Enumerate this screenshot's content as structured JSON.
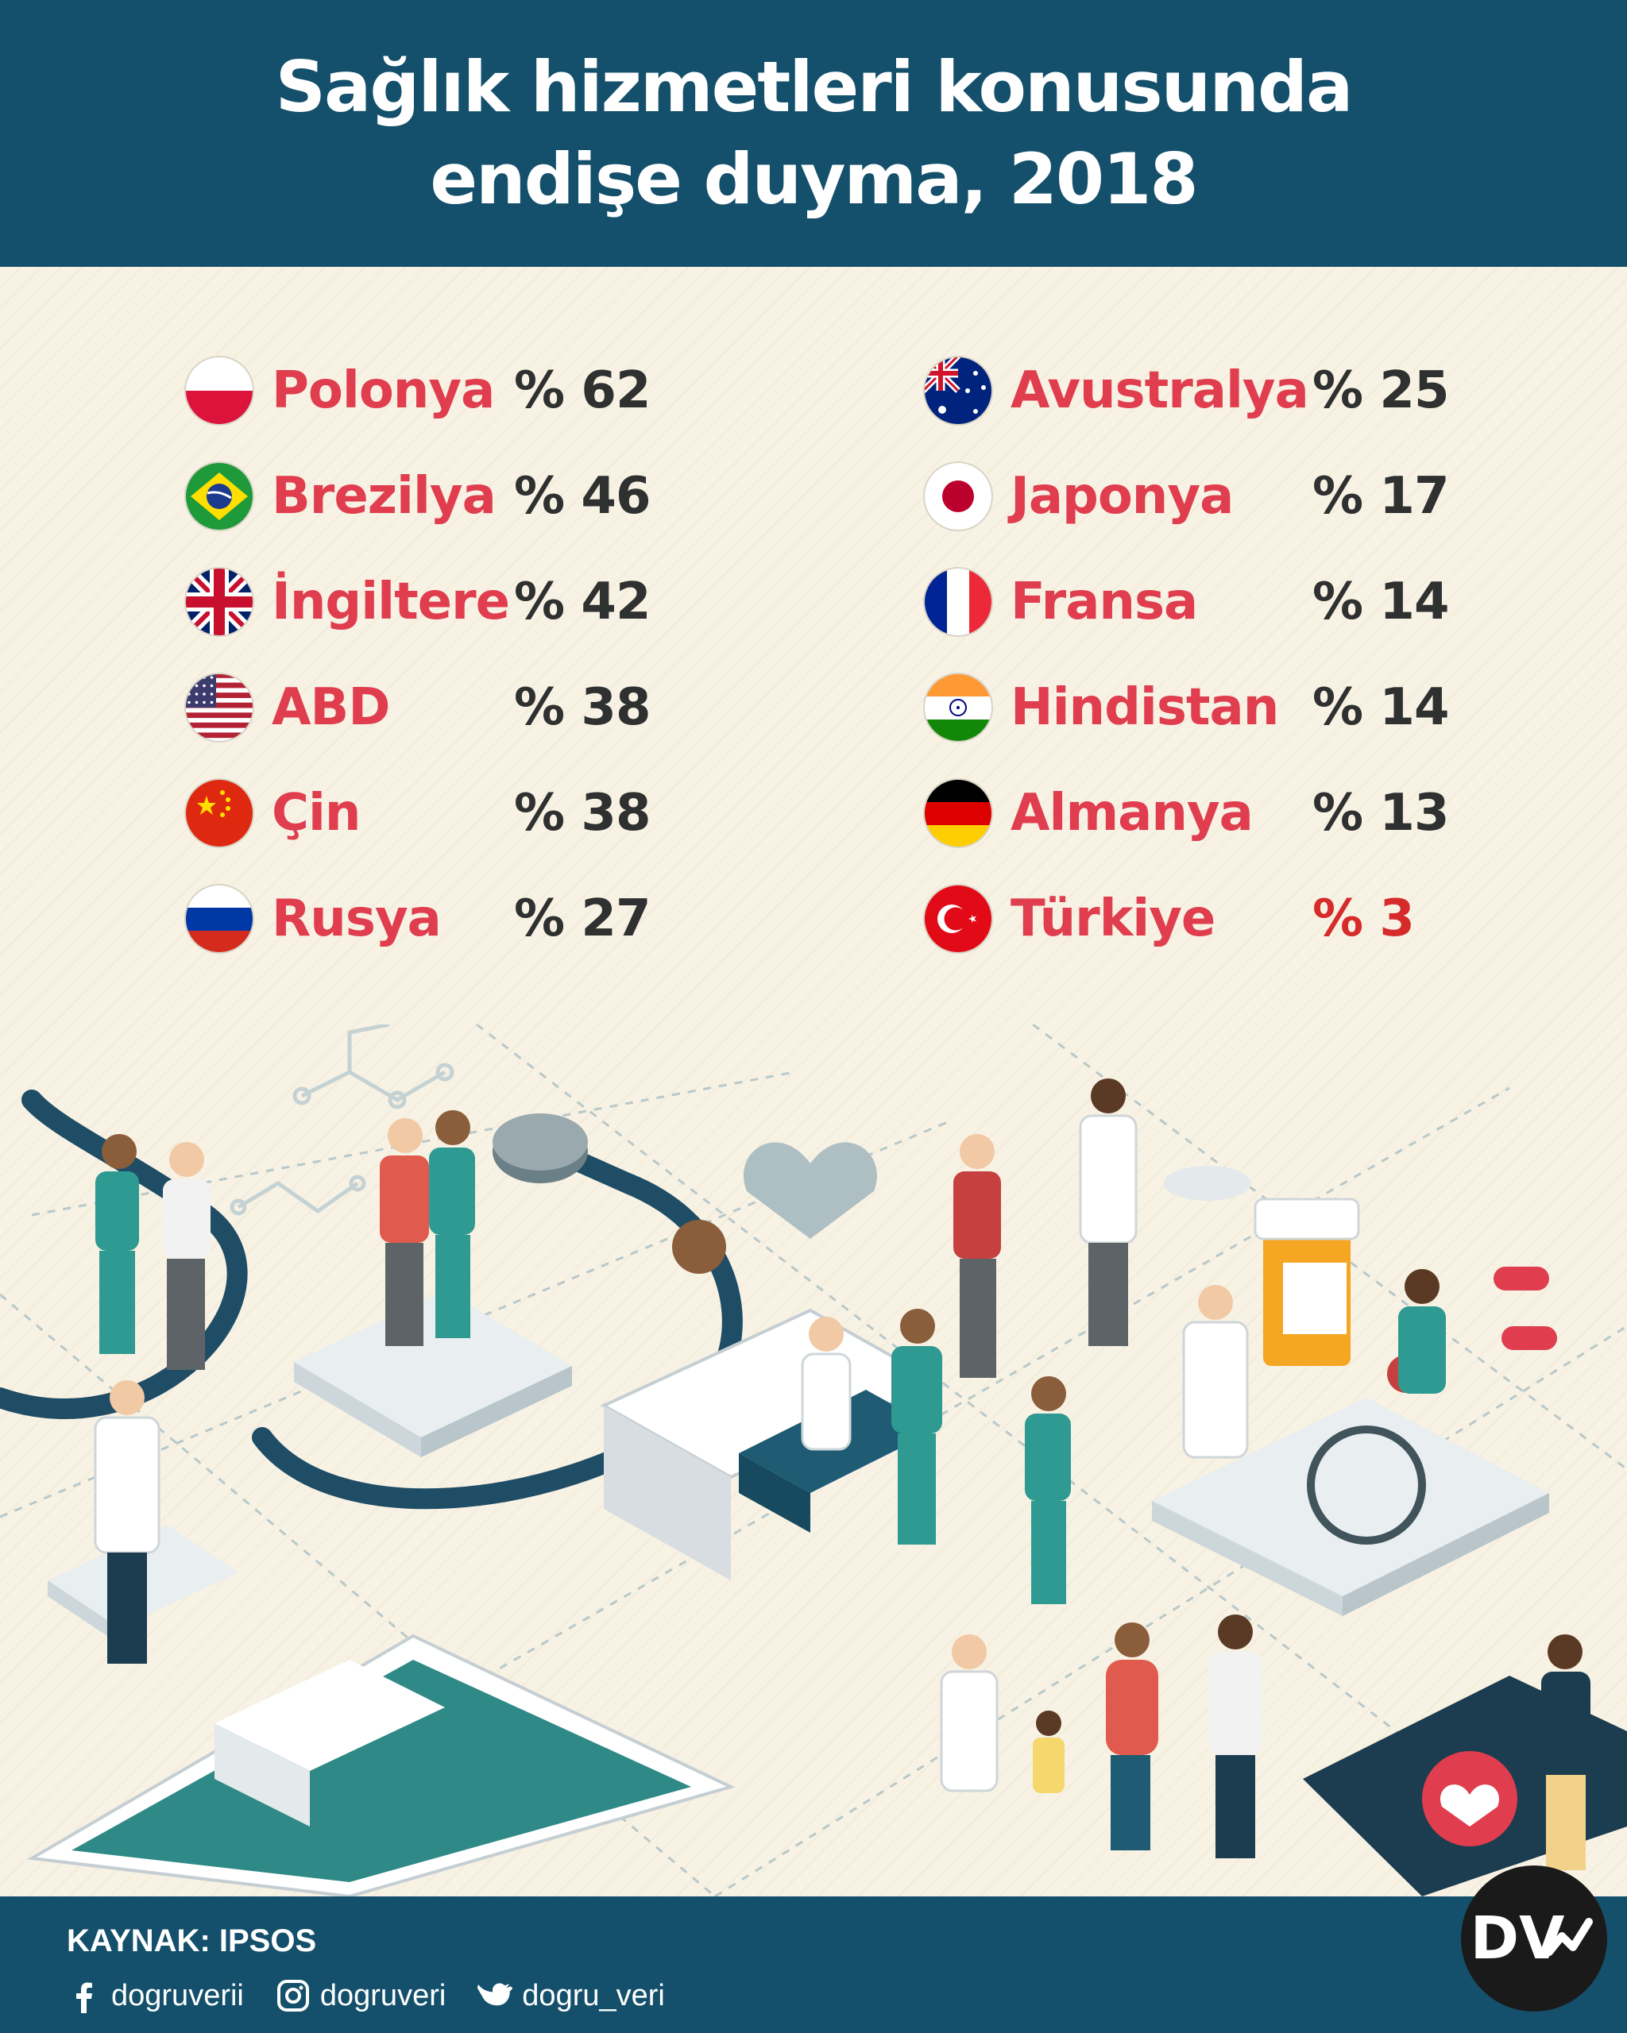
{
  "header": {
    "title_line1": "Sağlık hizmetleri konusunda",
    "title_line2": "endişe duyma, 2018"
  },
  "chart_data": {
    "type": "table",
    "unit": "%",
    "title": "Sağlık hizmetleri konusunda endişe duyma, 2018",
    "categories": [
      "Polonya",
      "Brezilya",
      "İngiltere",
      "ABD",
      "Çin",
      "Rusya",
      "Avustralya",
      "Japonya",
      "Fransa",
      "Hindistan",
      "Almanya",
      "Türkiye"
    ],
    "values": [
      62,
      46,
      42,
      38,
      38,
      27,
      25,
      17,
      14,
      14,
      13,
      3
    ],
    "rows": [
      {
        "country": "Polonya",
        "value": 62,
        "label": "% 62",
        "flag": "poland-flag-icon"
      },
      {
        "country": "Brezilya",
        "value": 46,
        "label": "% 46",
        "flag": "brazil-flag-icon"
      },
      {
        "country": "İngiltere",
        "value": 42,
        "label": "% 42",
        "flag": "uk-flag-icon"
      },
      {
        "country": "ABD",
        "value": 38,
        "label": "% 38",
        "flag": "usa-flag-icon"
      },
      {
        "country": "Çin",
        "value": 38,
        "label": "% 38",
        "flag": "china-flag-icon"
      },
      {
        "country": "Rusya",
        "value": 27,
        "label": "% 27",
        "flag": "russia-flag-icon"
      },
      {
        "country": "Avustralya",
        "value": 25,
        "label": "% 25",
        "flag": "australia-flag-icon"
      },
      {
        "country": "Japonya",
        "value": 17,
        "label": "% 17",
        "flag": "japan-flag-icon"
      },
      {
        "country": "Fransa",
        "value": 14,
        "label": "% 14",
        "flag": "france-flag-icon"
      },
      {
        "country": "Hindistan",
        "value": 14,
        "label": "% 14",
        "flag": "india-flag-icon"
      },
      {
        "country": "Almanya",
        "value": 13,
        "label": "% 13",
        "flag": "germany-flag-icon"
      },
      {
        "country": "Türkiye",
        "value": 3,
        "label": "% 3",
        "flag": "turkey-flag-icon",
        "highlight": true
      }
    ]
  },
  "footer": {
    "source": "KAYNAK: IPSOS",
    "facebook": "dogruverii",
    "instagram": "dogruveri",
    "twitter": "dogru_veri",
    "logo_text": "DV"
  },
  "colors": {
    "header_bg": "#14506b",
    "background": "#f7f2e4",
    "country_text": "#e03d4e",
    "value_text": "#2f3030",
    "highlight_value": "#d62b2b"
  }
}
